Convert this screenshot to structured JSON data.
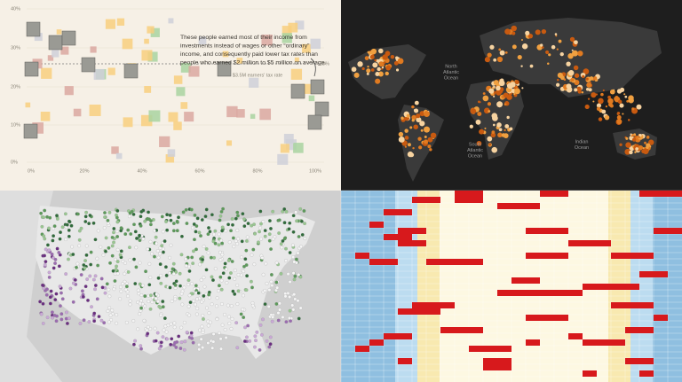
{
  "tax_panel": {
    "annotation": [
      "These people earned most of their income from",
      "investments instead of wages or other “ordinary”",
      "income, and consequently paid lower tax rates than",
      "people who earned $2 million to $5 million on average."
    ],
    "y_tick_labels": [
      "40%",
      "30%",
      "20%",
      "10%",
      "0%"
    ],
    "x_tick_labels": [
      "0%",
      "20%",
      "40%",
      "60%",
      "80%",
      "100%"
    ],
    "reference_label": "$3.5M earners' tax rate",
    "reference_value_label": "28%"
  },
  "world_map": {
    "oceans": [
      [
        "North",
        "Atlantic",
        "Ocean"
      ],
      [
        "South",
        "Atlantic",
        "Ocean"
      ],
      [
        "Indian",
        "Ocean"
      ]
    ]
  }
}
